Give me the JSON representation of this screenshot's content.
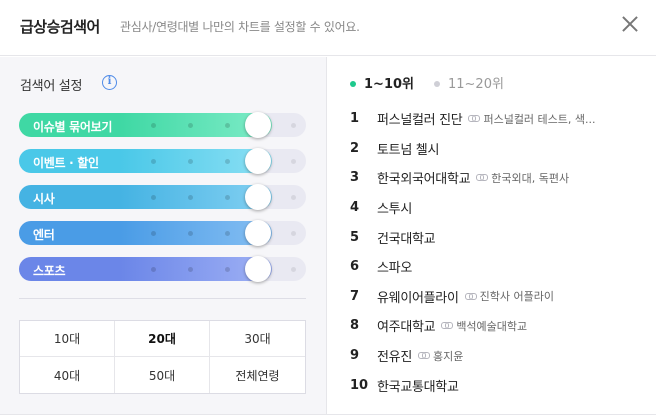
{
  "header": {
    "title": "급상승검색어",
    "subtitle": "관심사/연령대별 나만의 차트를 설정할 수 있어요."
  },
  "settings": {
    "title": "검색어 설정",
    "info_icon": "info-icon",
    "sliders": [
      {
        "label": "이슈별 묶어보기",
        "level": 1.0,
        "color_from": "#3fd8a4",
        "color_to": "#7fecc8"
      },
      {
        "label": "이벤트 · 할인",
        "level": 1.0,
        "color_from": "#4ac8e8",
        "color_to": "#8ce0f4"
      },
      {
        "label": "시사",
        "level": 1.0,
        "color_from": "#45b3e3",
        "color_to": "#83d0f2"
      },
      {
        "label": "엔터",
        "level": 1.0,
        "color_from": "#4a9ce6",
        "color_to": "#86bff3"
      },
      {
        "label": "스포츠",
        "level": 1.0,
        "color_from": "#6b86e8",
        "color_to": "#9fb1f5"
      }
    ],
    "age_options": [
      "10대",
      "20대",
      "30대",
      "40대",
      "50대",
      "전체연령"
    ],
    "age_selected": "20대"
  },
  "chart": {
    "tabs": [
      "1~10위",
      "11~20위"
    ],
    "active_tab": "1~10위",
    "items": [
      {
        "rank": "1",
        "keyword": "퍼스널컬러 진단",
        "related": "퍼스널컬러 테스트, 색..."
      },
      {
        "rank": "2",
        "keyword": "토트넘 첼시",
        "related": ""
      },
      {
        "rank": "3",
        "keyword": "한국외국어대학교",
        "related": "한국외대, 독편사"
      },
      {
        "rank": "4",
        "keyword": "스투시",
        "related": ""
      },
      {
        "rank": "5",
        "keyword": "건국대학교",
        "related": ""
      },
      {
        "rank": "6",
        "keyword": "스파오",
        "related": ""
      },
      {
        "rank": "7",
        "keyword": "유웨이어플라이",
        "related": "진학사 어플라이"
      },
      {
        "rank": "8",
        "keyword": "여주대학교",
        "related": "백석예술대학교"
      },
      {
        "rank": "9",
        "keyword": "전유진",
        "related": "홍지윤"
      },
      {
        "rank": "10",
        "keyword": "한국교통대학교",
        "related": ""
      }
    ]
  }
}
